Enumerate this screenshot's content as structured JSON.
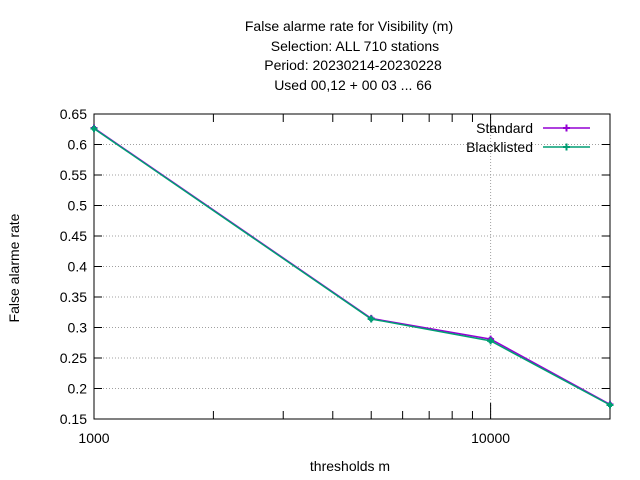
{
  "chart_data": {
    "type": "line",
    "title_lines": [
      "False alarme rate  for Visibility (m)",
      "Selection: ALL    710 stations",
      "Period: 20230214-20230228",
      "Used  00,12  + 00 03 ... 66"
    ],
    "xlabel": "thresholds m",
    "ylabel": "False alarme rate",
    "x_scale": "log",
    "xlim": [
      1000,
      20000
    ],
    "ylim": [
      0.15,
      0.65
    ],
    "x_ticks": [
      1000,
      10000
    ],
    "x_tick_labels": [
      "1000",
      "10000"
    ],
    "y_ticks": [
      0.15,
      0.2,
      0.25,
      0.3,
      0.35,
      0.4,
      0.45,
      0.5,
      0.55,
      0.6,
      0.65
    ],
    "y_tick_labels": [
      "0.15",
      "0.2",
      "0.25",
      "0.3",
      "0.35",
      "0.4",
      "0.45",
      "0.5",
      "0.55",
      "0.6",
      "0.65"
    ],
    "grid": true,
    "legend_position": "top-right",
    "series": [
      {
        "name": "Standard",
        "color": "#9400d3",
        "x": [
          1000,
          5000,
          10000,
          20000
        ],
        "values": [
          0.627,
          0.315,
          0.281,
          0.174
        ]
      },
      {
        "name": "Blacklisted",
        "color": "#009e73",
        "x": [
          1000,
          5000,
          10000,
          20000
        ],
        "values": [
          0.626,
          0.314,
          0.278,
          0.173
        ]
      }
    ]
  }
}
